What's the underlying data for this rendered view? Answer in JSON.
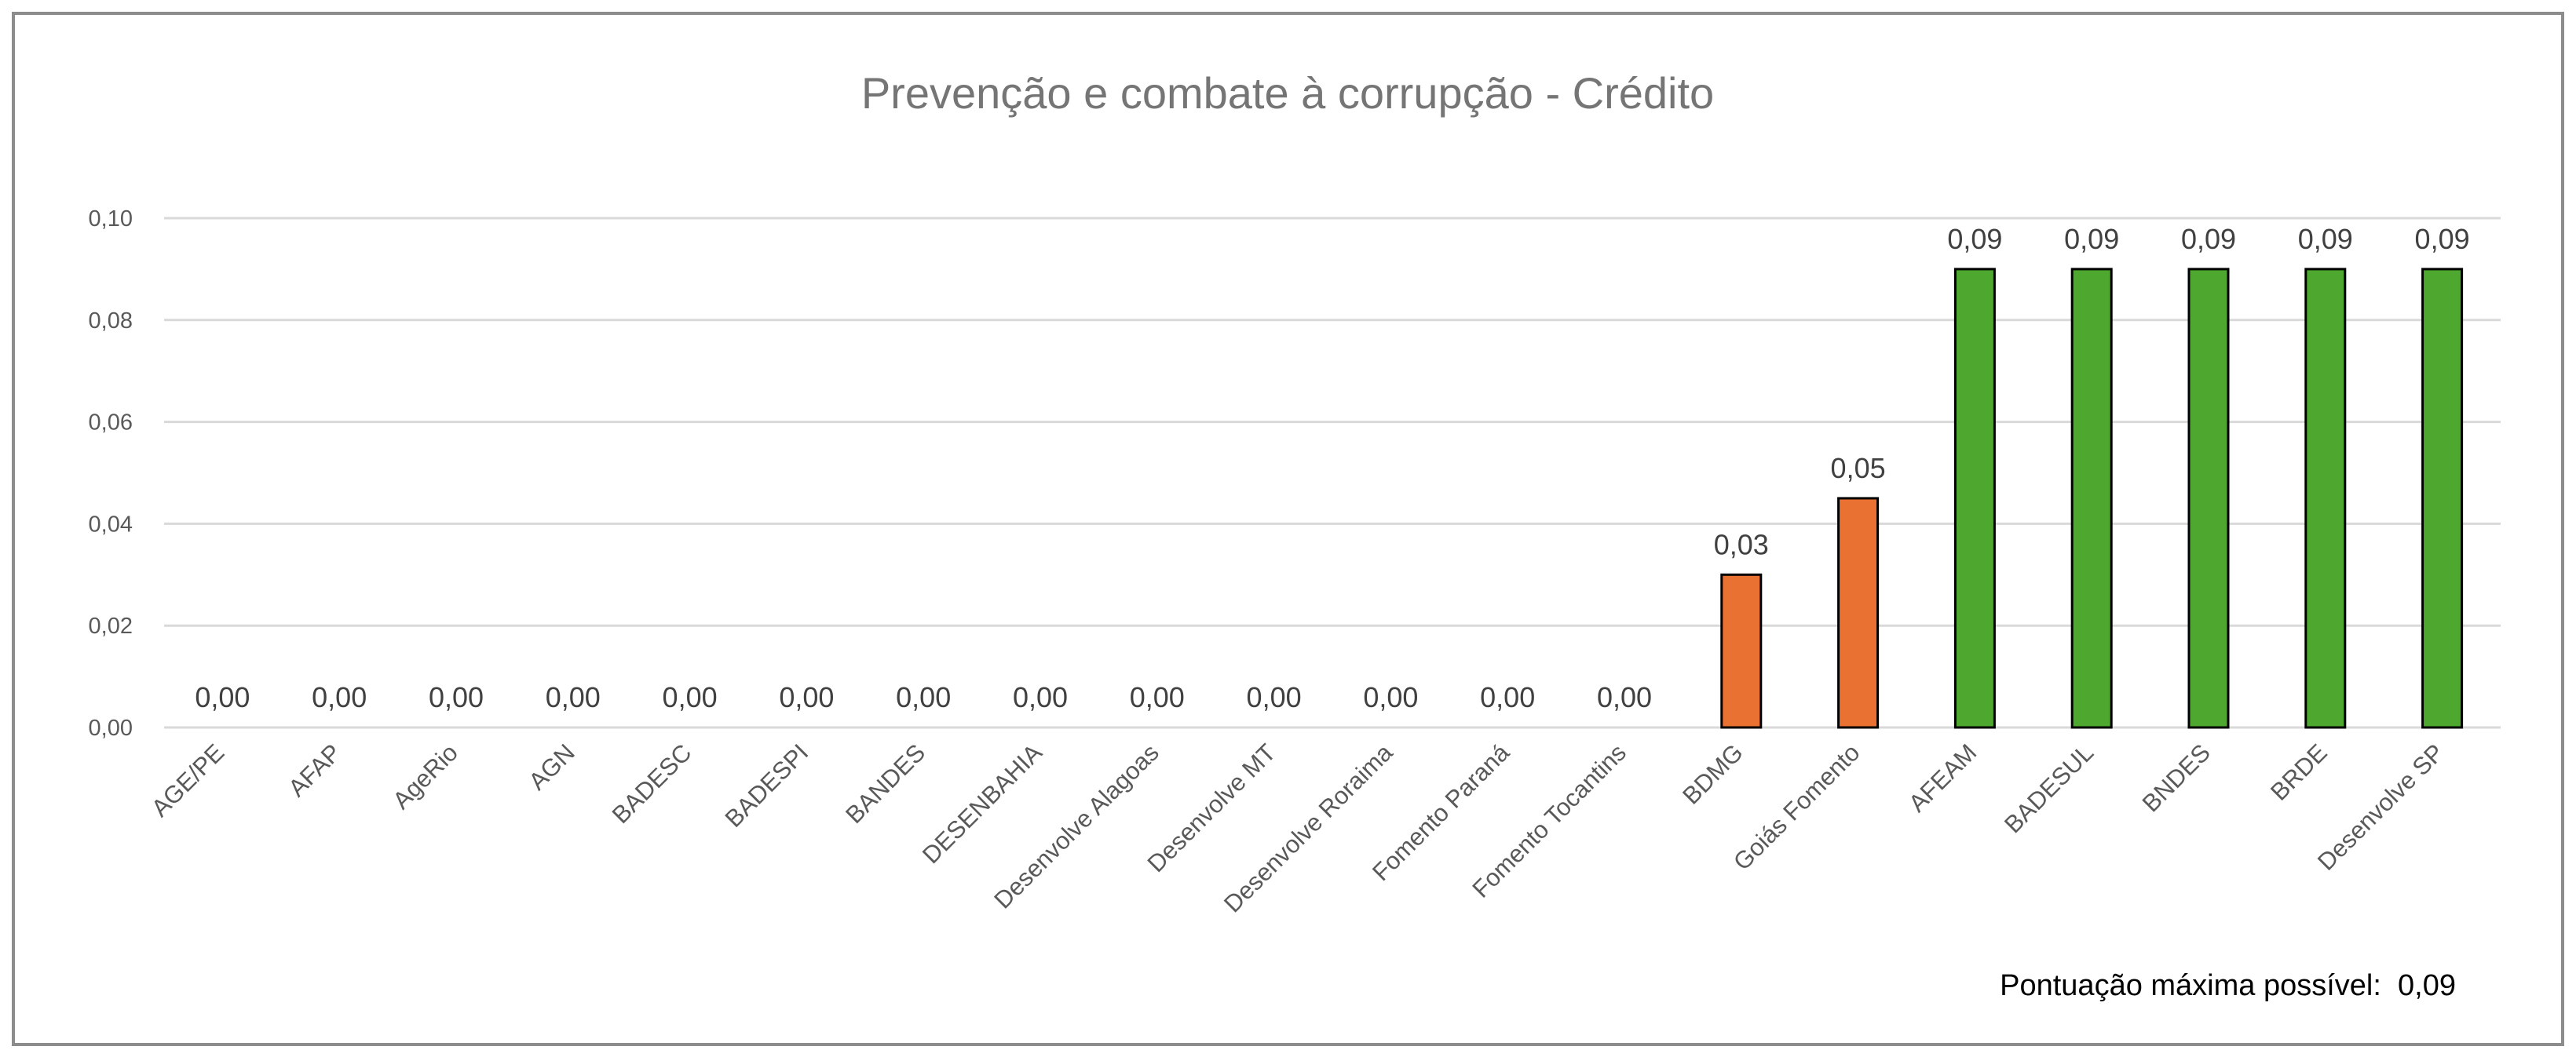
{
  "chart_data": {
    "type": "bar",
    "title": "Prevenção e combate à corrupção - Crédito",
    "xlabel": "",
    "ylabel": "",
    "ylim": [
      0,
      0.1
    ],
    "yticks": [
      "0,00",
      "0,02",
      "0,04",
      "0,06",
      "0,08",
      "0,10"
    ],
    "ytick_values": [
      0,
      0.02,
      0.04,
      0.06,
      0.08,
      0.1
    ],
    "grid": true,
    "categories": [
      "AGE/PE",
      "AFAP",
      "AgeRio",
      "AGN",
      "BADESC",
      "BADESPI",
      "BANDES",
      "DESENBAHIA",
      "Desenvolve Alagoas",
      "Desenvolve MT",
      "Desenvolve Roraima",
      "Fomento Paraná",
      "Fomento Tocantins",
      "BDMG",
      "Goiás Fomento",
      "AFEAM",
      "BADESUL",
      "BNDES",
      "BRDE",
      "Desenvolve SP"
    ],
    "values": [
      0,
      0,
      0,
      0,
      0,
      0,
      0,
      0,
      0,
      0,
      0,
      0,
      0,
      0.03,
      0.045,
      0.09,
      0.09,
      0.09,
      0.09,
      0.09
    ],
    "data_labels": [
      "0,00",
      "0,00",
      "0,00",
      "0,00",
      "0,00",
      "0,00",
      "0,00",
      "0,00",
      "0,00",
      "0,00",
      "0,00",
      "0,00",
      "0,00",
      "0,03",
      "0,05",
      "0,09",
      "0,09",
      "0,09",
      "0,09",
      "0,09"
    ],
    "bar_colors": [
      "#E97132",
      "#E97132",
      "#E97132",
      "#E97132",
      "#E97132",
      "#E97132",
      "#E97132",
      "#E97132",
      "#E97132",
      "#E97132",
      "#E97132",
      "#E97132",
      "#E97132",
      "#E97132",
      "#E97132",
      "#4EA72E",
      "#4EA72E",
      "#4EA72E",
      "#4EA72E",
      "#4EA72E"
    ],
    "annotation": "Pontuação máxima possível:  0,09"
  }
}
